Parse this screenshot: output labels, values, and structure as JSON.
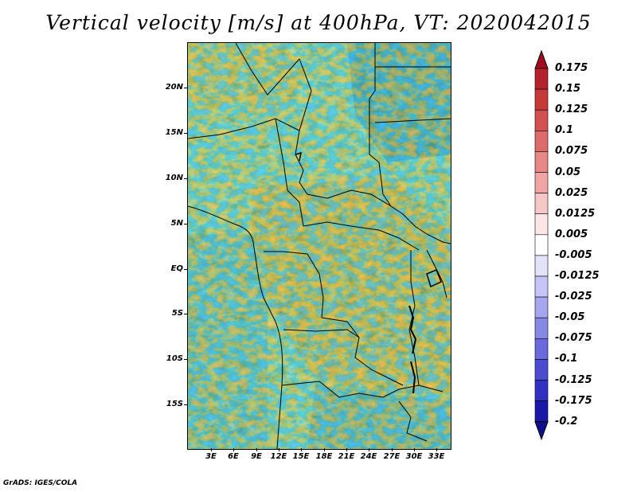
{
  "title": "Vertical velocity [m/s] at 400hPa, VT: 2020042015",
  "footer": "GrADS: IGES/COLA",
  "map": {
    "lat_labels": [
      "20N",
      "15N",
      "10N",
      "5N",
      "EQ",
      "5S",
      "10S",
      "15S"
    ],
    "lon_labels": [
      "3E",
      "6E",
      "9E",
      "12E",
      "15E",
      "18E",
      "21E",
      "24E",
      "27E",
      "30E",
      "33E"
    ]
  },
  "colorbar": {
    "labels": [
      "0.175",
      "0.15",
      "0.125",
      "0.1",
      "0.075",
      "0.05",
      "0.025",
      "0.0125",
      "0.005",
      "-0.005",
      "-0.0125",
      "-0.025",
      "-0.05",
      "-0.075",
      "-0.1",
      "-0.125",
      "-0.175",
      "-0.2"
    ],
    "colors": [
      "#a10d1e",
      "#b5222b",
      "#c73a3a",
      "#d45151",
      "#de6b6b",
      "#e88787",
      "#f0a5a5",
      "#f7c7c7",
      "#fce6e6",
      "#ffffff",
      "#e2e2fb",
      "#c5c5f5",
      "#a6a6ee",
      "#8888e5",
      "#6a6adc",
      "#4c4cd0",
      "#3030c0",
      "#1a1aa8",
      "#0f0f8a"
    ]
  }
}
